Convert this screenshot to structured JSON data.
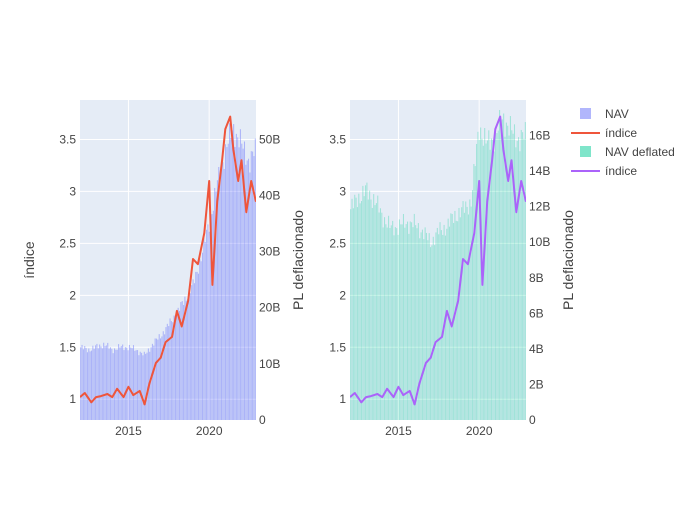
{
  "chart_data": [
    {
      "type": "bar+line",
      "title": "",
      "xlabel": "",
      "ylabel_left": "índice",
      "ylabel_right": "PL deflacionado",
      "x_range": [
        2012.0,
        2022.9
      ],
      "ylim_left": [
        0.8,
        3.88
      ],
      "ylim_right": [
        0,
        57
      ],
      "x_ticks": [
        2015,
        2020
      ],
      "y_ticks_left": [
        1,
        1.5,
        2,
        2.5,
        3,
        3.5
      ],
      "y_ticks_right": [
        0,
        10,
        20,
        30,
        40,
        50
      ],
      "y_tick_labels_right": [
        "0",
        "10B",
        "20B",
        "30B",
        "40B",
        "50B"
      ],
      "grid": true,
      "series": [
        {
          "name": "NAV",
          "kind": "bar",
          "axis": "right",
          "color": "#636efa",
          "opacity": 0.45,
          "x": [
            2012.0,
            2012.5,
            2013.0,
            2013.5,
            2014.0,
            2014.5,
            2015.0,
            2015.5,
            2016.0,
            2016.5,
            2017.0,
            2017.5,
            2018.0,
            2018.5,
            2019.0,
            2019.5,
            2020.0,
            2020.5,
            2021.0,
            2021.5,
            2022.0,
            2022.5,
            2022.9
          ],
          "values": [
            13.0,
            12.5,
            13.0,
            13.5,
            12.5,
            13.0,
            13.0,
            12.5,
            11.5,
            13.5,
            15.0,
            17.0,
            19.0,
            21.5,
            24.0,
            29.0,
            35.0,
            42.0,
            48.0,
            52.0,
            49.0,
            46.0,
            48.0
          ]
        },
        {
          "name": "índice",
          "kind": "line",
          "axis": "left",
          "color": "#ef553b",
          "x": [
            2012.0,
            2012.3,
            2012.7,
            2013.0,
            2013.3,
            2013.7,
            2014.0,
            2014.3,
            2014.7,
            2015.0,
            2015.3,
            2015.7,
            2016.0,
            2016.3,
            2016.7,
            2017.0,
            2017.3,
            2017.7,
            2018.0,
            2018.3,
            2018.7,
            2019.0,
            2019.3,
            2019.7,
            2020.0,
            2020.2,
            2020.5,
            2020.8,
            2021.0,
            2021.3,
            2021.5,
            2021.8,
            2022.0,
            2022.3,
            2022.6,
            2022.9
          ],
          "values": [
            1.02,
            1.06,
            0.97,
            1.02,
            1.03,
            1.05,
            1.02,
            1.1,
            1.02,
            1.12,
            1.04,
            1.08,
            0.95,
            1.15,
            1.35,
            1.4,
            1.55,
            1.6,
            1.85,
            1.7,
            1.95,
            2.35,
            2.3,
            2.6,
            3.1,
            2.1,
            2.9,
            3.3,
            3.6,
            3.72,
            3.4,
            3.1,
            3.3,
            2.8,
            3.1,
            2.9
          ]
        }
      ]
    },
    {
      "type": "bar+line",
      "title": "",
      "xlabel": "",
      "ylabel_left": "",
      "ylabel_right": "PL deflacionado",
      "x_range": [
        2012.0,
        2022.9
      ],
      "ylim_left": [
        0.8,
        3.88
      ],
      "ylim_right": [
        0,
        18
      ],
      "x_ticks": [
        2015,
        2020
      ],
      "y_ticks_left": [
        1,
        1.5,
        2,
        2.5,
        3,
        3.5
      ],
      "y_ticks_right": [
        0,
        2,
        4,
        6,
        8,
        10,
        12,
        14,
        16
      ],
      "y_tick_labels_right": [
        "0",
        "2B",
        "4B",
        "6B",
        "8B",
        "10B",
        "12B",
        "14B",
        "16B"
      ],
      "grid": true,
      "series": [
        {
          "name": "NAV deflated",
          "kind": "bar",
          "axis": "right",
          "color": "#00cc96",
          "opacity": 0.3,
          "x": [
            2012.0,
            2012.5,
            2013.0,
            2013.5,
            2014.0,
            2014.5,
            2015.0,
            2015.5,
            2016.0,
            2016.5,
            2017.0,
            2017.5,
            2018.0,
            2018.5,
            2019.0,
            2019.5,
            2020.0,
            2020.5,
            2021.0,
            2021.5,
            2022.0,
            2022.5,
            2022.9
          ],
          "values": [
            11.8,
            12.5,
            12.9,
            12.4,
            11.5,
            10.8,
            10.9,
            11.1,
            11.0,
            10.6,
            10.0,
            10.6,
            10.9,
            11.5,
            11.8,
            12.3,
            16.5,
            15.5,
            16.0,
            17.0,
            16.2,
            15.8,
            16.0
          ]
        },
        {
          "name": "índice",
          "kind": "line",
          "axis": "left",
          "color": "#ab63fa",
          "x": [
            2012.0,
            2012.3,
            2012.7,
            2013.0,
            2013.3,
            2013.7,
            2014.0,
            2014.3,
            2014.7,
            2015.0,
            2015.3,
            2015.7,
            2016.0,
            2016.3,
            2016.7,
            2017.0,
            2017.3,
            2017.7,
            2018.0,
            2018.3,
            2018.7,
            2019.0,
            2019.3,
            2019.7,
            2020.0,
            2020.2,
            2020.5,
            2020.8,
            2021.0,
            2021.3,
            2021.5,
            2021.8,
            2022.0,
            2022.3,
            2022.6,
            2022.9
          ],
          "values": [
            1.02,
            1.06,
            0.97,
            1.02,
            1.03,
            1.05,
            1.02,
            1.1,
            1.02,
            1.12,
            1.04,
            1.08,
            0.95,
            1.15,
            1.35,
            1.4,
            1.55,
            1.6,
            1.85,
            1.7,
            1.95,
            2.35,
            2.3,
            2.6,
            3.1,
            2.1,
            2.9,
            3.3,
            3.6,
            3.72,
            3.4,
            3.1,
            3.3,
            2.8,
            3.1,
            2.9
          ]
        }
      ]
    }
  ],
  "legend": {
    "placement": "top-right",
    "items": [
      {
        "label": "NAV",
        "kind": "bar",
        "color": "#636efa"
      },
      {
        "label": "índice",
        "kind": "line",
        "color": "#ef553b"
      },
      {
        "label": "NAV deflated",
        "kind": "bar",
        "color": "#00cc96"
      },
      {
        "label": "índice",
        "kind": "line",
        "color": "#ab63fa"
      }
    ]
  },
  "theme": {
    "plot_bg": "#e5ecf6",
    "grid": "#ffffff",
    "text": "#444444"
  }
}
